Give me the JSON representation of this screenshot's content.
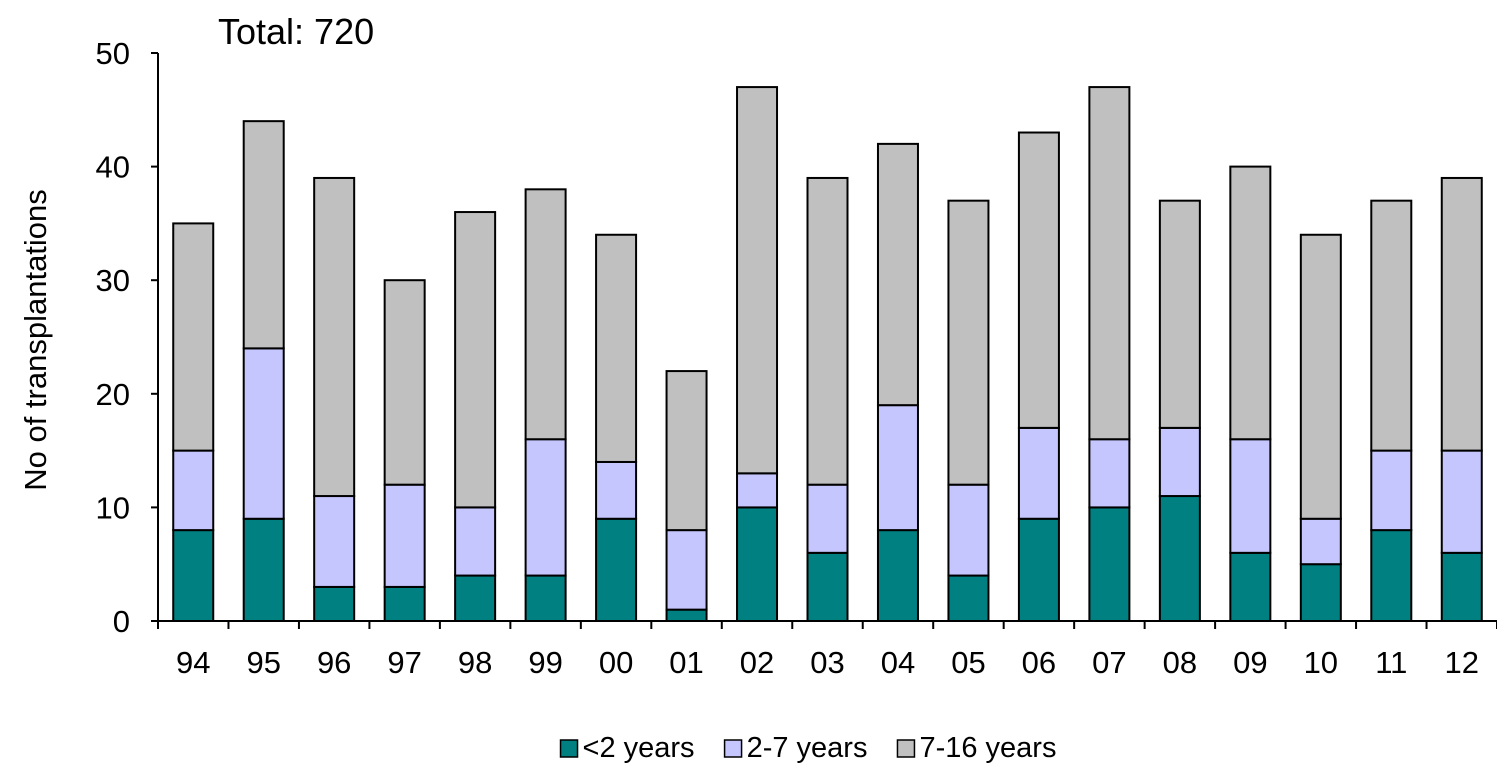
{
  "chart_data": {
    "type": "bar",
    "stacked": true,
    "title": "Total: 720",
    "xlabel": "",
    "ylabel": "No of transplantations",
    "ylim": [
      0,
      50
    ],
    "yticks": [
      0,
      10,
      20,
      30,
      40,
      50
    ],
    "categories": [
      "94",
      "95",
      "96",
      "97",
      "98",
      "99",
      "00",
      "01",
      "02",
      "03",
      "04",
      "05",
      "06",
      "07",
      "08",
      "09",
      "10",
      "11",
      "12"
    ],
    "series": [
      {
        "name": "<2 years",
        "color": "#008080",
        "values": [
          8,
          9,
          3,
          3,
          4,
          4,
          9,
          1,
          10,
          6,
          8,
          4,
          9,
          10,
          11,
          6,
          5,
          8,
          6
        ]
      },
      {
        "name": "2-7 years",
        "color": "#C6C6FF",
        "values": [
          7,
          15,
          8,
          9,
          6,
          12,
          5,
          7,
          3,
          6,
          11,
          8,
          8,
          6,
          6,
          10,
          4,
          7,
          9
        ]
      },
      {
        "name": "7-16 years",
        "color": "#C0C0C0",
        "values": [
          20,
          20,
          28,
          18,
          26,
          22,
          20,
          14,
          34,
          27,
          23,
          25,
          26,
          31,
          20,
          24,
          25,
          22,
          24
        ]
      }
    ],
    "grid": false,
    "legend_position": "bottom"
  }
}
